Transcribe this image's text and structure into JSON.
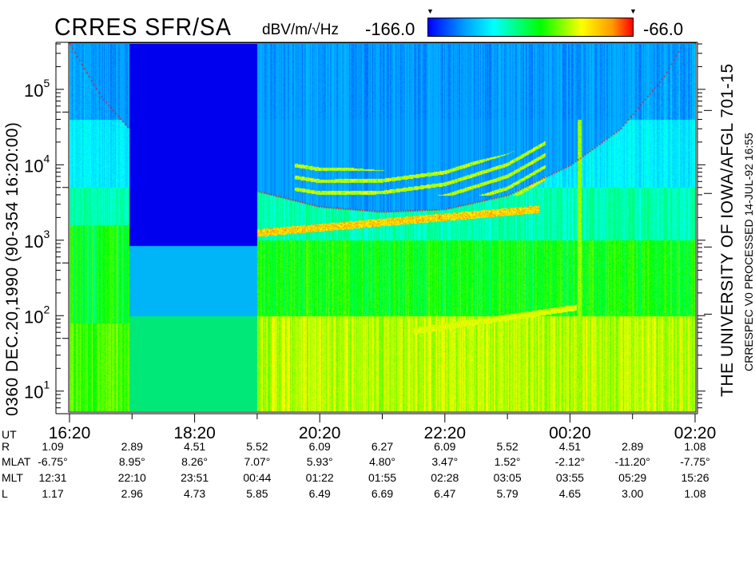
{
  "header": {
    "title": "CRRES SFR/SA",
    "units": "dBV/m/√Hz",
    "color_min": "-166.0",
    "color_max": "-66.0"
  },
  "left_label": "0360  DEC.20,1990  (90-354 16:20:00)",
  "right_label_1": "THE UNIVERSITY OF IOWA/AFGL 701-15",
  "right_label_2": "CRRESPEC V0   PROCESSED 14-JUL-92  16:55",
  "colors": {
    "colormap": [
      "#0000ff",
      "#00a0ff",
      "#00ffff",
      "#00ff00",
      "#ffff00",
      "#ff9900",
      "#ff0000"
    ],
    "curve": "#ff0000",
    "gap_high": "#0000ee",
    "gap_mid": "#00b4f8",
    "gap_low": "#00e878"
  },
  "chart_data": {
    "type": "heatmap",
    "title": "CRRES SFR/SA",
    "colorbar": {
      "label": "dBV/m/√Hz",
      "min": -166.0,
      "max": -66.0
    },
    "x_axis": {
      "label": "UT",
      "range": [
        "16:20",
        "02:20"
      ],
      "tick_labels": [
        "16:20",
        "18:20",
        "20:20",
        "22:20",
        "00:20",
        "02:20"
      ]
    },
    "y_axis": {
      "scale": "log",
      "range": [
        5.4,
        400000
      ],
      "tick_labels": [
        {
          "base": "10",
          "exp": "1"
        },
        {
          "base": "10",
          "exp": "2"
        },
        {
          "base": "10",
          "exp": "3"
        },
        {
          "base": "10",
          "exp": "4"
        },
        {
          "base": "10",
          "exp": "5"
        }
      ]
    },
    "data_gap": {
      "start": "17:17",
      "end": "19:20"
    },
    "red_curve": [
      [
        "16:20",
        400000
      ],
      [
        "16:50",
        80000
      ],
      [
        "17:17",
        30000
      ],
      [
        "19:20",
        4500
      ],
      [
        "20:20",
        2800
      ],
      [
        "21:20",
        2400
      ],
      [
        "22:20",
        2600
      ],
      [
        "23:20",
        4000
      ],
      [
        "00:20",
        10000
      ],
      [
        "01:08",
        30000
      ],
      [
        "01:50",
        150000
      ],
      [
        "02:08",
        400000
      ]
    ],
    "ephemeris": {
      "rows": [
        {
          "label": "R",
          "values": [
            "1.09",
            "2.89",
            "4.51",
            "5.52",
            "6.09",
            "6.27",
            "6.09",
            "5.52",
            "4.51",
            "2.89",
            "1.08"
          ]
        },
        {
          "label": "MLAT",
          "values": [
            "-6.75°",
            "8.95°",
            "8.26°",
            "7.07°",
            "5.93°",
            "4.80°",
            "3.47°",
            "1.52°",
            "-2.12°",
            "-11.20°",
            "-7.75°"
          ]
        },
        {
          "label": "MLT",
          "values": [
            "12:31",
            "22:10",
            "23:51",
            "00:44",
            "01:22",
            "01:55",
            "02:28",
            "03:05",
            "03:55",
            "05:29",
            "15:26"
          ]
        },
        {
          "label": "L",
          "values": [
            "1.17",
            "2.96",
            "4.73",
            "5.85",
            "6.49",
            "6.69",
            "6.47",
            "5.79",
            "4.65",
            "3.00",
            "1.08"
          ]
        }
      ]
    }
  }
}
